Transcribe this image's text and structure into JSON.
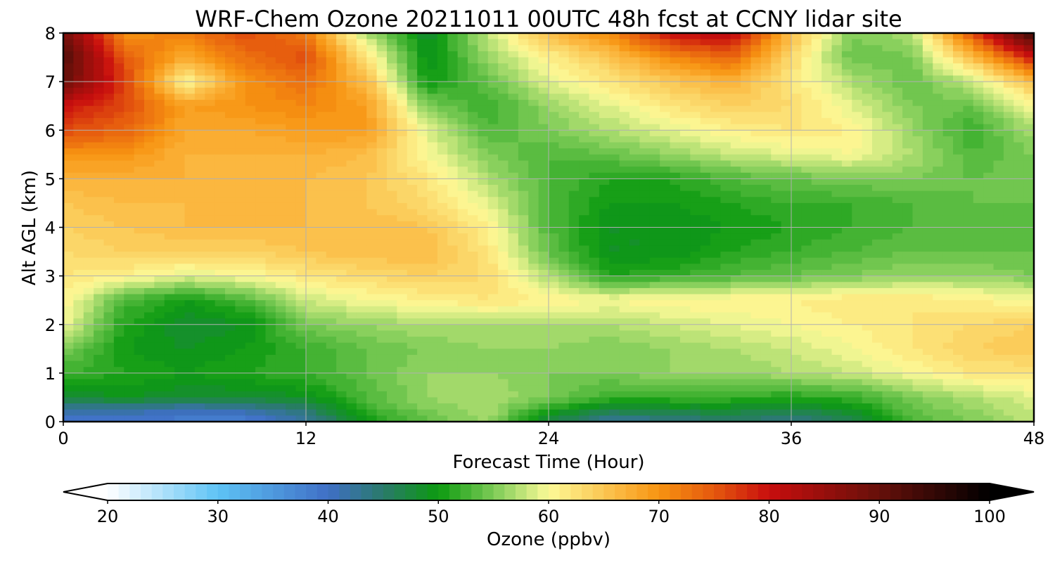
{
  "chart_data": {
    "type": "heatmap",
    "title": "WRF-Chem Ozone  20211011 00UTC 48h fcst at CCNY lidar site",
    "xlabel": "Forecast Time (Hour)",
    "ylabel": "Alt AGL (km)",
    "xlim": [
      0,
      48
    ],
    "ylim": [
      0,
      8
    ],
    "x_ticks": [
      0,
      12,
      24,
      36,
      48
    ],
    "y_ticks": [
      0,
      1,
      2,
      3,
      4,
      5,
      6,
      7,
      8
    ],
    "grid": true,
    "x": [
      0,
      3,
      6,
      9,
      12,
      15,
      18,
      21,
      24,
      27,
      30,
      33,
      36,
      39,
      42,
      45,
      48
    ],
    "y": [
      0,
      0.25,
      0.5,
      1,
      1.5,
      2,
      2.5,
      3,
      3.5,
      4,
      4.5,
      5,
      5.5,
      6,
      6.5,
      7,
      7.5,
      8
    ],
    "z": [
      [
        38,
        39,
        38,
        38,
        42,
        50,
        54,
        56,
        47,
        42,
        43,
        45,
        43,
        46,
        53,
        55,
        58
      ],
      [
        42,
        42,
        41,
        42,
        45,
        52,
        55,
        57,
        51,
        47,
        48,
        48,
        47,
        49,
        54,
        56,
        58
      ],
      [
        48,
        49,
        48,
        48,
        49,
        53,
        56,
        57,
        55,
        52,
        52,
        52,
        51,
        52,
        55,
        57,
        59
      ],
      [
        52,
        51,
        50,
        51,
        52,
        54,
        56,
        56,
        55,
        55,
        56,
        56,
        57,
        58,
        60,
        62,
        62
      ],
      [
        55,
        50,
        49,
        50,
        52,
        54,
        55,
        56,
        56,
        55,
        56,
        57,
        58,
        60,
        62,
        64,
        65
      ],
      [
        60,
        51,
        48,
        49,
        55,
        56,
        57,
        57,
        57,
        57,
        58,
        59,
        60,
        61,
        62,
        63,
        64
      ],
      [
        61,
        53,
        50,
        53,
        58,
        60,
        61,
        62,
        61,
        60,
        61,
        61,
        61,
        62,
        62,
        61,
        60
      ],
      [
        62,
        61,
        59,
        60,
        62,
        63,
        64,
        63,
        57,
        51,
        52,
        53,
        54,
        55,
        56,
        56,
        55
      ],
      [
        63,
        64,
        64,
        64,
        65,
        66,
        66,
        62,
        54,
        49,
        49,
        51,
        52,
        53,
        54,
        54,
        54
      ],
      [
        64,
        65,
        66,
        66,
        66,
        66,
        65,
        61,
        53,
        49,
        49,
        50,
        51,
        52,
        53,
        53,
        54
      ],
      [
        65,
        66,
        66,
        66,
        66,
        65,
        63,
        59,
        53,
        50,
        50,
        51,
        52,
        52,
        53,
        54,
        54
      ],
      [
        67,
        67,
        67,
        66,
        66,
        65,
        62,
        57,
        53,
        51,
        51,
        53,
        54,
        55,
        55,
        54,
        55
      ],
      [
        70,
        70,
        67,
        67,
        67,
        66,
        60,
        55,
        53,
        54,
        56,
        58,
        59,
        60,
        57,
        53,
        55
      ],
      [
        76,
        74,
        68,
        68,
        69,
        69,
        59,
        53,
        55,
        57,
        59,
        61,
        62,
        61,
        56,
        52,
        57
      ],
      [
        80,
        76,
        69,
        70,
        71,
        69,
        55,
        52,
        56,
        59,
        62,
        64,
        63,
        59,
        55,
        54,
        60
      ],
      [
        90,
        77,
        60,
        70,
        73,
        66,
        50,
        54,
        59,
        62,
        65,
        67,
        62,
        57,
        54,
        58,
        66
      ],
      [
        92,
        75,
        68,
        73,
        76,
        62,
        49,
        56,
        61,
        65,
        71,
        74,
        63,
        54,
        55,
        66,
        80
      ],
      [
        88,
        70,
        72,
        76,
        72,
        57,
        48,
        58,
        66,
        71,
        80,
        82,
        66,
        55,
        57,
        76,
        95
      ]
    ],
    "colorbar": {
      "label": "Ozone  (ppbv)",
      "min": 20,
      "max": 100,
      "ticks": [
        20,
        30,
        40,
        50,
        60,
        70,
        80,
        90,
        100
      ],
      "extend": "both",
      "location": "bottom",
      "colormap_stops": [
        {
          "value": 20,
          "color": "#ffffff"
        },
        {
          "value": 30,
          "color": "#5ec3f5"
        },
        {
          "value": 40,
          "color": "#3f6fc6"
        },
        {
          "value": 45,
          "color": "#2a7a6a"
        },
        {
          "value": 50,
          "color": "#0c9a10"
        },
        {
          "value": 55,
          "color": "#7ccb56"
        },
        {
          "value": 60,
          "color": "#fcfa98"
        },
        {
          "value": 66,
          "color": "#fbbc45"
        },
        {
          "value": 70,
          "color": "#f79411"
        },
        {
          "value": 75,
          "color": "#e5580e"
        },
        {
          "value": 80,
          "color": "#c80e0e"
        },
        {
          "value": 90,
          "color": "#66100a"
        },
        {
          "value": 100,
          "color": "#000000"
        }
      ],
      "under_color": "#ffffff",
      "over_color": "#000000"
    }
  }
}
